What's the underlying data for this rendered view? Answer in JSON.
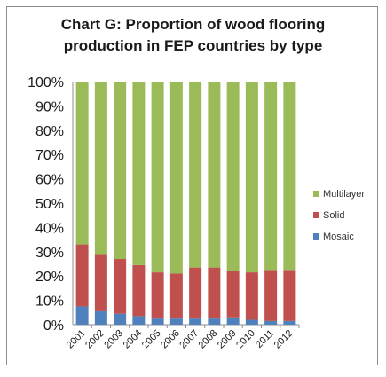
{
  "chart_data": {
    "type": "bar",
    "stacked": true,
    "title_lines": [
      "Chart G: Proportion of wood flooring",
      "production in FEP countries by type"
    ],
    "categories": [
      "2001",
      "2002",
      "2003",
      "2004",
      "2005",
      "2006",
      "2007",
      "2008",
      "2009",
      "2010",
      "2011",
      "2012"
    ],
    "series": [
      {
        "name": "Mosaic",
        "color": "#4f81bd",
        "values": [
          7.5,
          5.5,
          4.5,
          3.5,
          2.5,
          2.5,
          2.5,
          2.5,
          3.0,
          2.0,
          1.5,
          1.5
        ]
      },
      {
        "name": "Solid",
        "color": "#c0504d",
        "values": [
          25.5,
          23.5,
          22.5,
          21.0,
          19.0,
          18.5,
          21.0,
          21.0,
          19.0,
          19.5,
          21.0,
          21.0
        ]
      },
      {
        "name": "Multilayer",
        "color": "#9bbb59",
        "values": [
          67.0,
          71.0,
          73.0,
          75.5,
          78.5,
          79.0,
          76.5,
          76.5,
          78.0,
          78.5,
          77.5,
          77.5
        ]
      }
    ],
    "yticks": [
      "0%",
      "10%",
      "20%",
      "30%",
      "40%",
      "50%",
      "60%",
      "70%",
      "80%",
      "90%",
      "100%"
    ],
    "ylim": [
      0,
      100
    ],
    "legend_position": "right",
    "legend_order": [
      "Multilayer",
      "Solid",
      "Mosaic"
    ]
  }
}
